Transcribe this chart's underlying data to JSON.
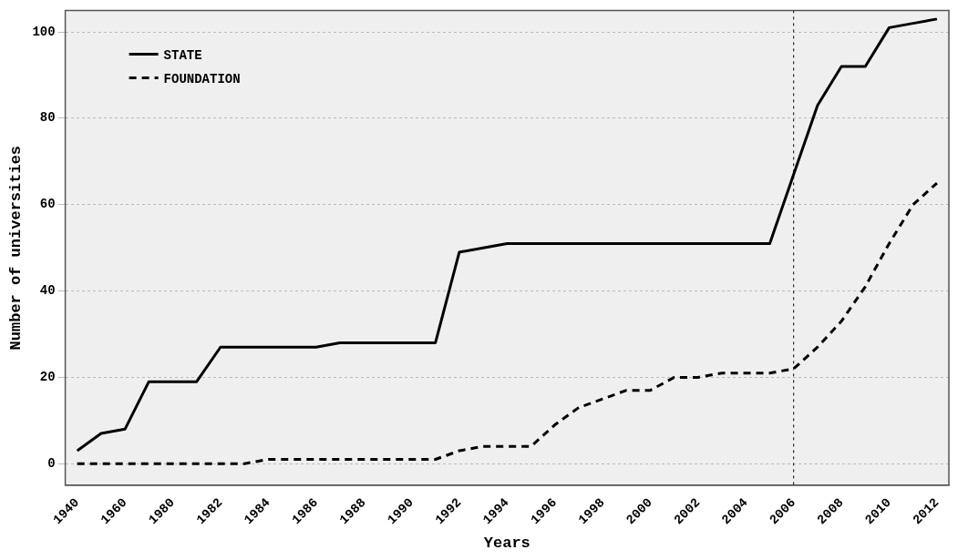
{
  "chart_data": {
    "type": "line",
    "xlabel": "Years",
    "ylabel": "Number of universities",
    "categories": [
      "1940",
      null,
      "1960",
      null,
      "1980",
      null,
      "1982",
      null,
      "1984",
      null,
      "1986",
      null,
      "1988",
      null,
      "1990",
      null,
      "1992",
      null,
      "1994",
      null,
      "1996",
      null,
      "1998",
      null,
      "2000",
      null,
      "2002",
      null,
      "2004",
      null,
      "2006",
      null,
      "2008",
      null,
      "2010",
      null,
      "2012"
    ],
    "series": [
      {
        "name": "STATE",
        "color": "#000000",
        "line_style": "solid",
        "values": [
          3,
          7,
          8,
          19,
          19,
          19,
          27,
          27,
          27,
          27,
          27,
          28,
          28,
          28,
          28,
          28,
          49,
          50,
          51,
          51,
          51,
          51,
          51,
          51,
          51,
          51,
          51,
          51,
          51,
          51,
          67,
          83,
          92,
          92,
          101,
          102,
          103
        ]
      },
      {
        "name": "FOUNDATION",
        "color": "#000000",
        "line_style": "dashed",
        "values": [
          0,
          0,
          0,
          0,
          0,
          0,
          0,
          0,
          1,
          1,
          1,
          1,
          1,
          1,
          1,
          1,
          3,
          4,
          4,
          4,
          9,
          13,
          15,
          17,
          17,
          20,
          20,
          21,
          21,
          21,
          22,
          27,
          33,
          41,
          51,
          60,
          65
        ]
      }
    ],
    "ylim": [
      -5,
      105
    ],
    "yticks": [
      0,
      20,
      40,
      60,
      80,
      100
    ],
    "grid": "y",
    "legend": "top left",
    "marker": "none",
    "ref_lines": [
      {
        "axis": "x",
        "value": "2006",
        "color": "#000000",
        "line_style": "dotted"
      }
    ]
  }
}
